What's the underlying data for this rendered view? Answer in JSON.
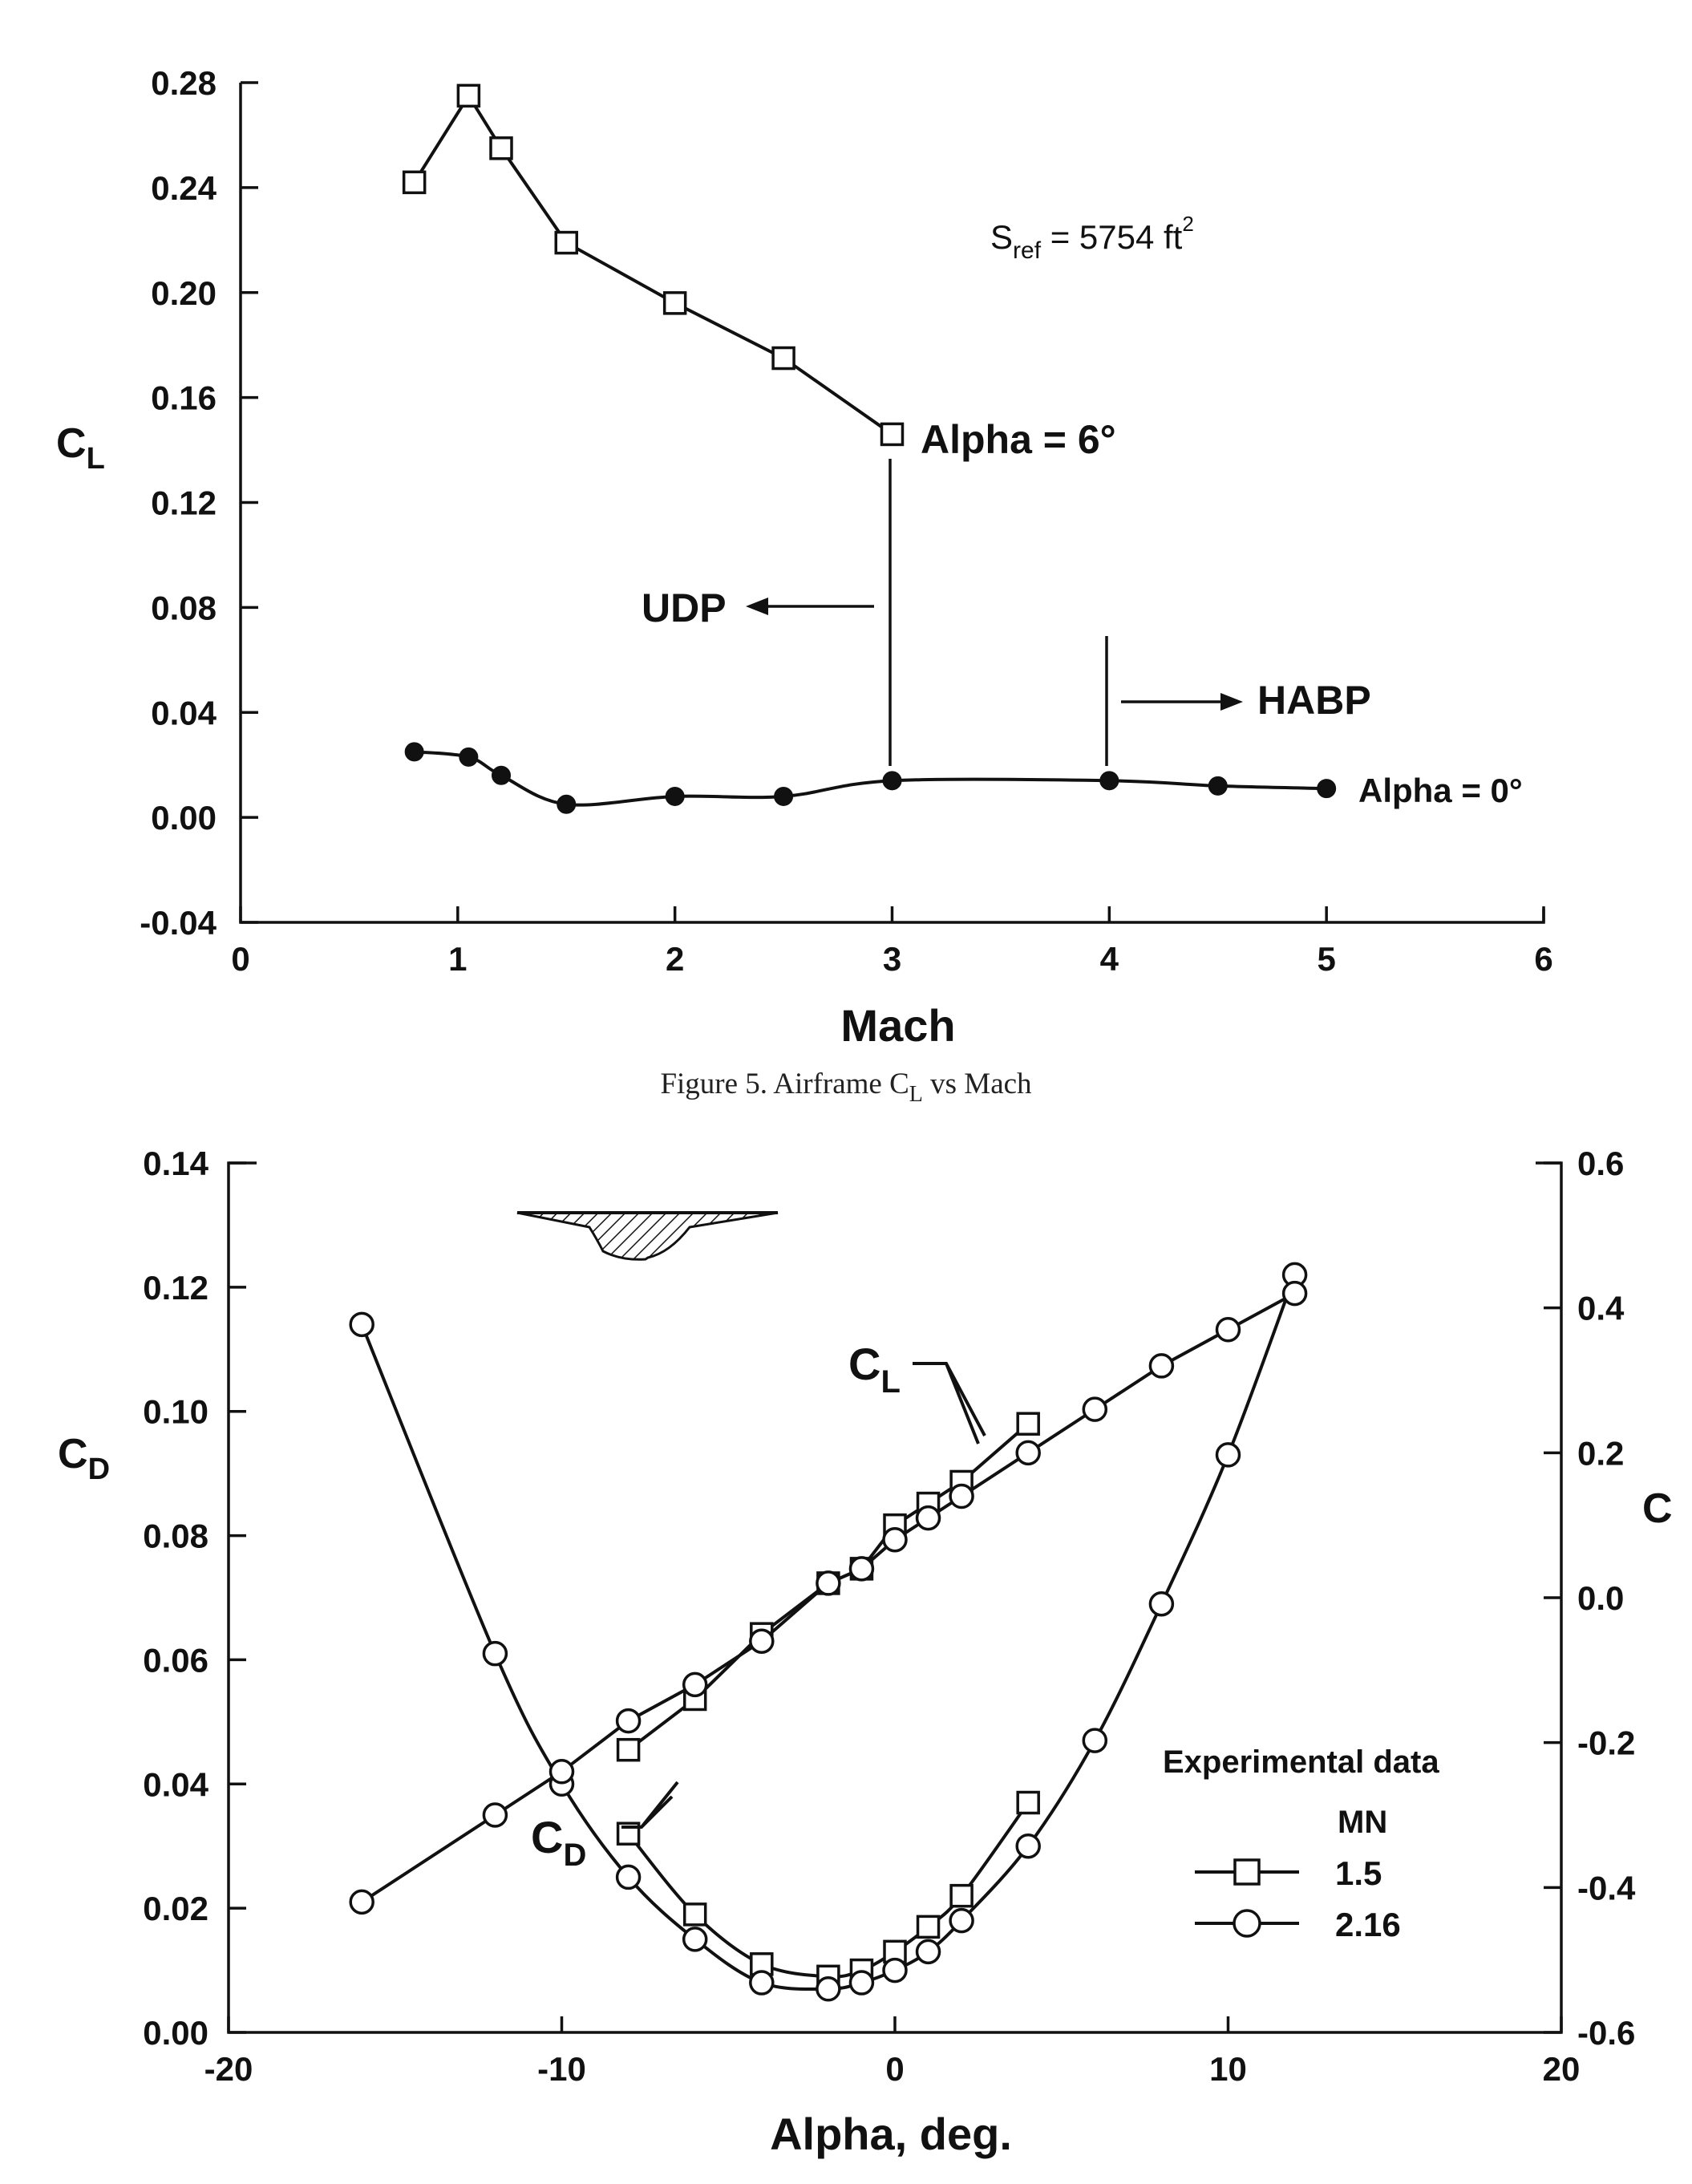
{
  "chart_data": [
    {
      "type": "line",
      "xlabel": "Mach",
      "ylabel": "C",
      "ylabel_sub": "L",
      "xlim": [
        0,
        6
      ],
      "ylim": [
        -0.04,
        0.28
      ],
      "x_ticks": [
        "0",
        "1",
        "2",
        "3",
        "4",
        "5",
        "6"
      ],
      "y_ticks": [
        "0.28",
        "0.24",
        "0.20",
        "0.16",
        "0.12",
        "0.08",
        "0.04",
        "0.00",
        "-0.04"
      ],
      "series": [
        {
          "name": "Alpha = 6°",
          "marker": "square-open",
          "x": [
            0.8,
            1.05,
            1.2,
            1.5,
            2.0,
            2.5,
            3.0
          ],
          "y": [
            0.242,
            0.275,
            0.255,
            0.219,
            0.196,
            0.175,
            0.146
          ]
        },
        {
          "name": "Alpha = 0°",
          "marker": "circle-filled",
          "x": [
            0.8,
            1.05,
            1.2,
            1.5,
            2.0,
            2.5,
            3.0,
            4.0,
            4.5,
            5.0
          ],
          "y": [
            0.025,
            0.023,
            0.016,
            0.005,
            0.008,
            0.008,
            0.014,
            0.014,
            0.012,
            0.011
          ]
        }
      ],
      "annotations": {
        "sref_main": "S",
        "sref_sub": "ref",
        "sref_value": " = 5754 ft",
        "sref_sup": "2",
        "udp": "UDP",
        "habp": "HABP"
      },
      "caption": {
        "prefix": "Figure 5. Airframe C",
        "sub": "L",
        "suffix": " vs Mach"
      }
    },
    {
      "type": "line",
      "xlabel": "Alpha, deg.",
      "ylabel": "C",
      "ylabel_sub": "D",
      "y2label": "C",
      "xlim": [
        -20,
        20
      ],
      "ylim": [
        0,
        0.14
      ],
      "y2lim": [
        -0.6,
        0.6
      ],
      "x_ticks": [
        "-20",
        "-10",
        "0",
        "10",
        "20"
      ],
      "y_ticks": [
        "0.14",
        "0.12",
        "0.10",
        "0.08",
        "0.06",
        "0.04",
        "0.02",
        "0.00"
      ],
      "y2_ticks": [
        "0.6",
        "0.4",
        "0.2",
        "0.0",
        "-0.2",
        "-0.4",
        "-0.6"
      ],
      "series": [
        {
          "name": "CD MN 1.5",
          "marker": "square-open",
          "x": [
            -8,
            -6,
            -4,
            -2,
            -1,
            0,
            1,
            2,
            4
          ],
          "y": [
            0.032,
            0.019,
            0.011,
            0.009,
            0.01,
            0.013,
            0.017,
            0.022,
            0.037
          ]
        },
        {
          "name": "CD MN 2.16",
          "marker": "circle-open",
          "x": [
            -16,
            -12,
            -10,
            -8,
            -6,
            -4,
            -2,
            -1,
            0,
            1,
            2,
            4,
            6,
            8,
            10,
            12
          ],
          "y": [
            0.114,
            0.061,
            0.04,
            0.025,
            0.015,
            0.008,
            0.007,
            0.008,
            0.01,
            0.013,
            0.018,
            0.03,
            0.047,
            0.069,
            0.093,
            0.122
          ]
        },
        {
          "name": "CL MN 1.5",
          "marker": "square-open",
          "x": [
            -8,
            -6,
            -4,
            -2,
            -1,
            0,
            1,
            2,
            4
          ],
          "y2": [
            -0.21,
            -0.14,
            -0.05,
            0.02,
            0.04,
            0.1,
            0.13,
            0.16,
            0.24
          ]
        },
        {
          "name": "CL MN 2.16",
          "marker": "circle-open",
          "x": [
            -16,
            -12,
            -10,
            -8,
            -6,
            -4,
            -2,
            -1,
            0,
            1,
            2,
            4,
            6,
            8,
            10,
            12
          ],
          "y2": [
            -0.42,
            -0.3,
            -0.24,
            -0.17,
            -0.12,
            -0.06,
            0.02,
            0.04,
            0.08,
            0.11,
            0.14,
            0.2,
            0.26,
            0.32,
            0.37,
            0.42
          ]
        }
      ],
      "labels": {
        "cl_main": "C",
        "cl_sub": "L",
        "cd_main": "C",
        "cd_sub": "D"
      },
      "legend": {
        "placement": "lower-right",
        "title": "Experimental data",
        "subtitle": "MN",
        "entries": [
          "1.5",
          "2.16"
        ]
      }
    }
  ]
}
